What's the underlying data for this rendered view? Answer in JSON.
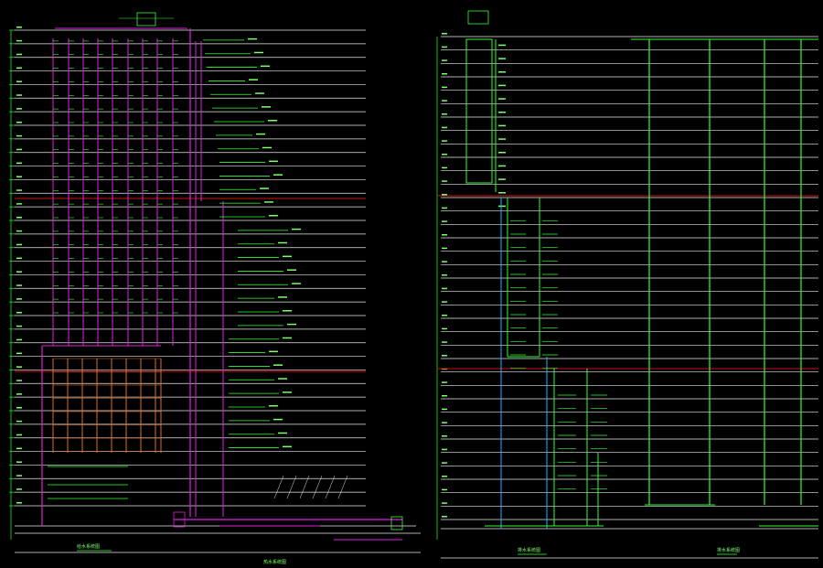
{
  "colors": {
    "background": "#000000",
    "floor_line": "#e8e8e8",
    "transfer_line": "#d01010",
    "magenta_pipe": "#e020e0",
    "green_pipe": "#30ff30",
    "cyan_pipe": "#20b0ff",
    "orange_pipe": "#e07020",
    "label_text": "#7cff6a"
  },
  "drawings": [
    {
      "id": "left-riser-system",
      "floors": 35,
      "caption": "给水系统图"
    },
    {
      "id": "right-riser-system",
      "floors": 36,
      "caption": "排水系统图"
    }
  ],
  "footnote_left": "给水系统图",
  "footnote_right": "排水系统图",
  "footnote_mid": "热水系统图"
}
